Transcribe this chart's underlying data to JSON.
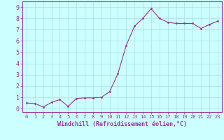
{
  "x": [
    0,
    1,
    2,
    3,
    4,
    5,
    6,
    7,
    8,
    9,
    10,
    11,
    12,
    13,
    14,
    15,
    16,
    17,
    18,
    19,
    20,
    21,
    22,
    23
  ],
  "y": [
    0.5,
    0.45,
    0.15,
    0.55,
    0.8,
    0.2,
    0.9,
    0.95,
    0.95,
    1.0,
    1.5,
    3.1,
    5.6,
    7.3,
    8.0,
    8.85,
    8.0,
    7.65,
    7.55,
    7.55,
    7.55,
    7.1,
    7.45,
    7.75
  ],
  "line_color": "#993399",
  "marker": "D",
  "marker_size": 1.5,
  "bg_color": "#ccffff",
  "grid_color": "#aaddee",
  "xlabel": "Windchill (Refroidissement éolien,°C)",
  "xlim": [
    -0.5,
    23.5
  ],
  "ylim": [
    -0.3,
    9.5
  ],
  "yticks": [
    0,
    1,
    2,
    3,
    4,
    5,
    6,
    7,
    8,
    9
  ],
  "xticks": [
    0,
    1,
    2,
    3,
    4,
    5,
    6,
    7,
    8,
    9,
    10,
    11,
    12,
    13,
    14,
    15,
    16,
    17,
    18,
    19,
    20,
    21,
    22,
    23
  ],
  "tick_color": "#993399",
  "label_color": "#993399",
  "spine_color": "#993399",
  "xlabel_fontsize": 6,
  "ytick_fontsize": 6,
  "xtick_fontsize": 5
}
